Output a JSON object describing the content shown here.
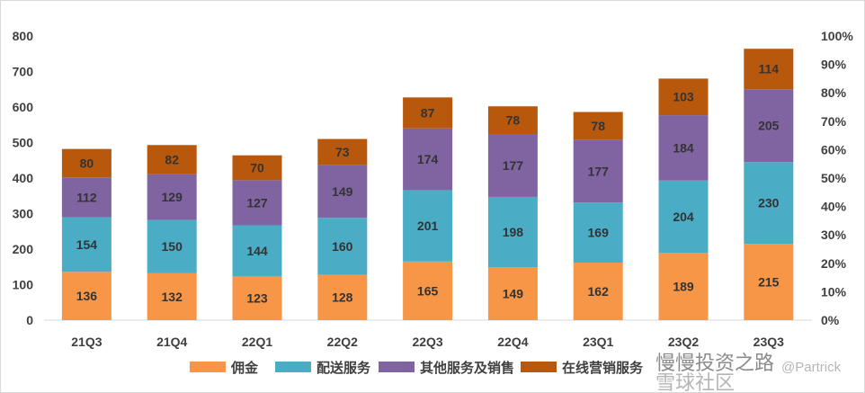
{
  "chart_data": {
    "type": "bar",
    "stacked": true,
    "categories": [
      "21Q3",
      "21Q4",
      "22Q1",
      "22Q2",
      "22Q3",
      "22Q4",
      "23Q1",
      "23Q2",
      "23Q3"
    ],
    "series": [
      {
        "name": "佣金",
        "color": "#F79646",
        "values": [
          136,
          132,
          123,
          128,
          165,
          149,
          162,
          189,
          215
        ]
      },
      {
        "name": "配送服务",
        "color": "#4BACC6",
        "values": [
          154,
          150,
          144,
          160,
          201,
          198,
          169,
          204,
          230
        ]
      },
      {
        "name": "其他服务及销售",
        "color": "#8064A2",
        "values": [
          112,
          129,
          127,
          149,
          174,
          177,
          177,
          184,
          205
        ]
      },
      {
        "name": "在线营销服务",
        "color": "#B8580C",
        "values": [
          80,
          82,
          70,
          73,
          87,
          78,
          78,
          103,
          114
        ]
      }
    ],
    "ylim": [
      0,
      800
    ],
    "yticks": [
      "0",
      "100",
      "200",
      "300",
      "400",
      "500",
      "600",
      "700",
      "800"
    ],
    "y2ticks": [
      "0%",
      "10%",
      "20%",
      "30%",
      "40%",
      "50%",
      "60%",
      "70%",
      "80%",
      "90%",
      "100%"
    ],
    "grid": false,
    "legend": "bottom"
  },
  "watermark": {
    "name": "慢慢投资之路",
    "handle": "@Partrick",
    "site": "雪球社区"
  }
}
